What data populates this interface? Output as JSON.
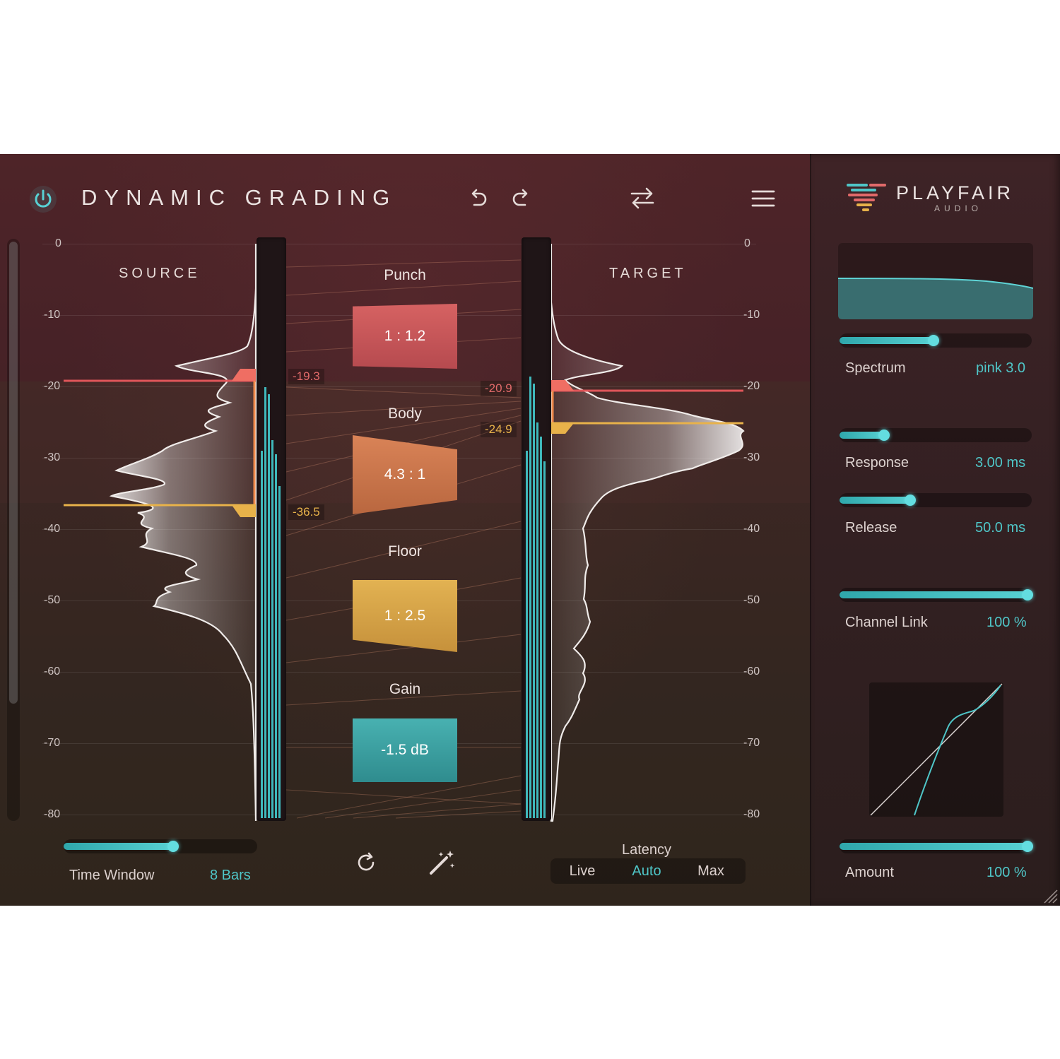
{
  "plugin": {
    "title": "DYNAMIC GRADING",
    "brand": {
      "name": "PLAYFAIR",
      "sub": "AUDIO"
    },
    "accent_color": "#4fc6c8"
  },
  "header": {
    "power_icon": "power-icon",
    "undo_icon": "undo-icon",
    "redo_icon": "redo-icon",
    "swap_icon": "swap-arrows-icon",
    "menu_icon": "hamburger-menu-icon"
  },
  "source": {
    "label": "SOURCE",
    "marker_high": "-19.3",
    "marker_low": "-36.5"
  },
  "target": {
    "label": "TARGET",
    "marker_high": "-20.9",
    "marker_low": "-24.9"
  },
  "scale": {
    "ticks": [
      "0",
      "-10",
      "-20",
      "-30",
      "-40",
      "-50",
      "-60",
      "-70",
      "-80"
    ]
  },
  "stages": [
    {
      "name": "Punch",
      "value": "1 : 1.2",
      "color": "#c65556"
    },
    {
      "name": "Body",
      "value": "4.3 : 1",
      "color": "#c8734f"
    },
    {
      "name": "Floor",
      "value": "1 : 2.5",
      "color": "#d6a446"
    },
    {
      "name": "Gain",
      "value": "-1.5 dB",
      "color": "#3a9e9f"
    }
  ],
  "time_window": {
    "label": "Time Window",
    "value": "8 Bars",
    "level": 0.57
  },
  "bottom_controls": {
    "reset_icon": "reset-icon",
    "magic_icon": "magic-wand-icon"
  },
  "latency": {
    "label": "Latency",
    "options": [
      "Live",
      "Auto",
      "Max"
    ],
    "selected": "Auto"
  },
  "sidebar": {
    "spectrum": {
      "label": "Spectrum",
      "value": "pink 3.0",
      "level": 0.49
    },
    "response": {
      "label": "Response",
      "value": "3.00 ms",
      "level": 0.22
    },
    "release": {
      "label": "Release",
      "value": "50.0 ms",
      "level": 0.36
    },
    "channel_link": {
      "label": "Channel Link",
      "value": "100 %",
      "level": 1.0
    },
    "amount": {
      "label": "Amount",
      "value": "100 %",
      "level": 1.0
    }
  }
}
